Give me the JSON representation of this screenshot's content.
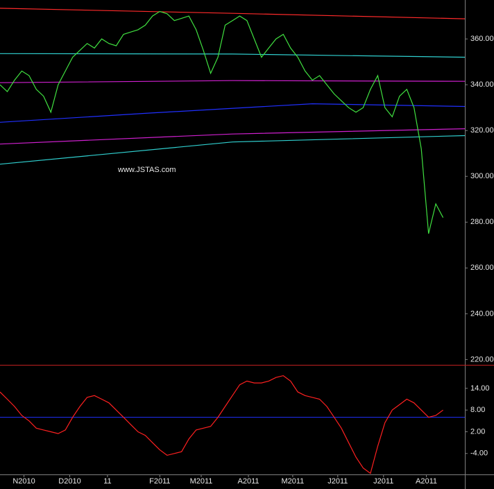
{
  "chart_data": [
    {
      "type": "line",
      "annotation": "www.JSTAS.com",
      "annotation_color": "#ff2020",
      "xlim": [
        0,
        64
      ],
      "ylim": [
        218,
        377
      ],
      "yticks": [
        {
          "value": 360,
          "label": "360.00"
        },
        {
          "value": 340,
          "label": "340.00"
        },
        {
          "value": 320,
          "label": "320.00"
        },
        {
          "value": 300,
          "label": "300.00"
        },
        {
          "value": 280,
          "label": "280.00"
        },
        {
          "value": 260,
          "label": "260.00"
        },
        {
          "value": 240,
          "label": "240.00"
        },
        {
          "value": 220,
          "label": "220.00"
        }
      ],
      "series": [
        {
          "color": "#ff2a2a",
          "x": [
            0,
            32,
            64
          ],
          "values": [
            373.4,
            371.2,
            368.8
          ]
        },
        {
          "color": "#30d0d0",
          "x": [
            0,
            32,
            64
          ],
          "values": [
            353.6,
            353.4,
            352
          ]
        },
        {
          "color": "#d020d0",
          "x": [
            0,
            32,
            64
          ],
          "values": [
            340.9,
            341.8,
            341.5
          ]
        },
        {
          "color": "#2030ff",
          "x": [
            0,
            20,
            43,
            64
          ],
          "values": [
            323.6,
            327.5,
            331.7,
            330.5
          ]
        },
        {
          "color": "#d020d0",
          "x": [
            0,
            32,
            64
          ],
          "values": [
            314.1,
            318.5,
            320.8
          ]
        },
        {
          "color": "#30d0d0",
          "x": [
            0,
            32,
            64
          ],
          "values": [
            305.3,
            315,
            317.8
          ]
        },
        {
          "color": "#40e040",
          "values": [
            340,
            337,
            342,
            346,
            344,
            338,
            335,
            328,
            340,
            346,
            352,
            355,
            358,
            356,
            360,
            358,
            357,
            362,
            363,
            364,
            366,
            370,
            372,
            371,
            368,
            369,
            370,
            364,
            355,
            345,
            352,
            366,
            368,
            370,
            368,
            360,
            352,
            356,
            360,
            362,
            356,
            352,
            346,
            342,
            344,
            340,
            336,
            333,
            330,
            328,
            330,
            338,
            344,
            330,
            326,
            335,
            338,
            330,
            312,
            275,
            288,
            282
          ]
        }
      ]
    },
    {
      "type": "line",
      "xlim": [
        0,
        64
      ],
      "ylim": [
        -9.4,
        20.3
      ],
      "yticks": [
        {
          "value": 14,
          "label": "14.00"
        },
        {
          "value": 8,
          "label": "8.00"
        },
        {
          "value": 2,
          "label": "2.00"
        },
        {
          "value": -4,
          "label": "-4.00"
        }
      ],
      "reference_line": {
        "value": 6,
        "color": "#2030ff"
      },
      "xticks": [
        {
          "value": 3.3,
          "label": "N2010"
        },
        {
          "value": 9.6,
          "label": "D2010"
        },
        {
          "value": 14.8,
          "label": "11"
        },
        {
          "value": 22,
          "label": "F2011"
        },
        {
          "value": 27.7,
          "label": "M2011"
        },
        {
          "value": 34.2,
          "label": "A2011"
        },
        {
          "value": 40.3,
          "label": "M2011"
        },
        {
          "value": 46.5,
          "label": "J2011"
        },
        {
          "value": 52.8,
          "label": "J2011"
        },
        {
          "value": 58.7,
          "label": "A2011"
        }
      ],
      "series": [
        {
          "color": "#ff2020",
          "values": [
            13,
            11,
            9,
            6.5,
            5,
            3,
            2.5,
            2,
            1.5,
            2.5,
            6,
            9,
            11.5,
            12,
            11,
            10,
            8,
            6,
            4,
            2,
            1,
            -1,
            -3,
            -4.5,
            -4,
            -3.5,
            0,
            2.5,
            3,
            3.5,
            6,
            9,
            12,
            15,
            16,
            15.5,
            15.5,
            16,
            17,
            17.5,
            16,
            13,
            12,
            11.5,
            11,
            9,
            6,
            3,
            -1,
            -5,
            -8,
            -9.5,
            -2,
            4.5,
            8,
            9.5,
            11,
            10,
            8,
            6,
            6.5,
            8
          ]
        }
      ]
    }
  ]
}
